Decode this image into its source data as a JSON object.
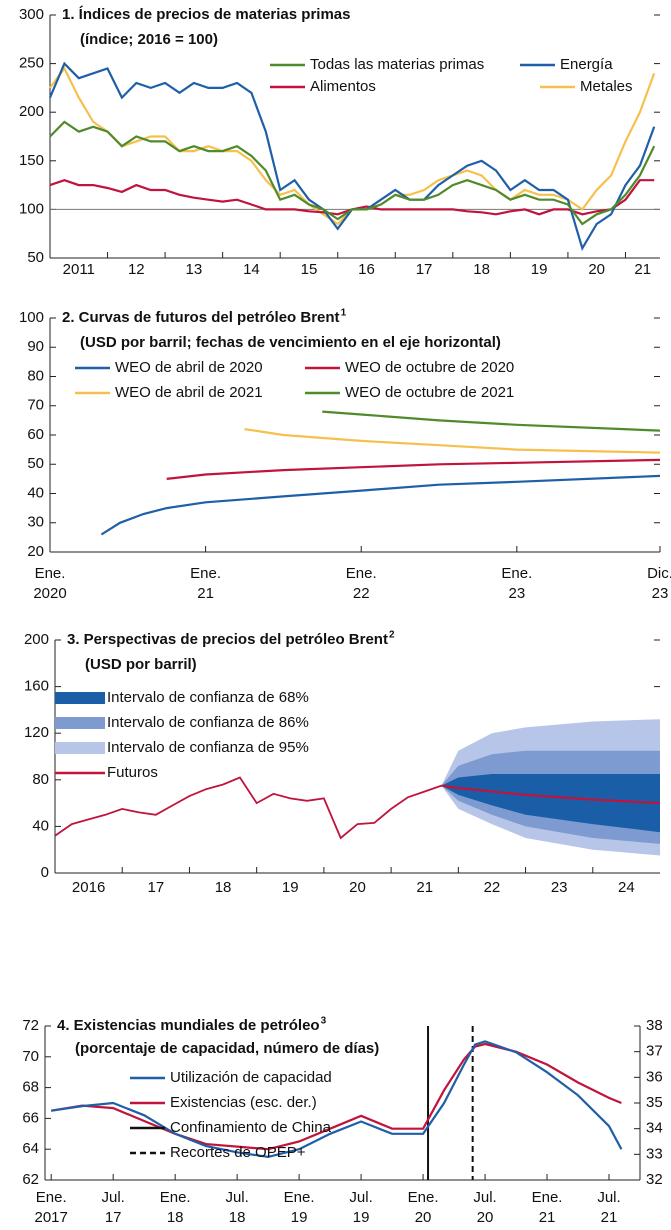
{
  "chart_data": [
    {
      "type": "line",
      "title": "1. Índices de precios de materias primas",
      "subtitle": "(índice; 2016 = 100)",
      "x": [
        2011,
        2011.25,
        2011.5,
        2011.75,
        2012,
        2012.25,
        2012.5,
        2012.75,
        2013,
        2013.25,
        2013.5,
        2013.75,
        2014,
        2014.25,
        2014.5,
        2014.75,
        2015,
        2015.25,
        2015.5,
        2015.75,
        2016,
        2016.25,
        2016.5,
        2016.75,
        2017,
        2017.25,
        2017.5,
        2017.75,
        2018,
        2018.25,
        2018.5,
        2018.75,
        2019,
        2019.25,
        2019.5,
        2019.75,
        2020,
        2020.25,
        2020.5,
        2020.75,
        2021,
        2021.25,
        2021.5
      ],
      "series": [
        {
          "name": "Todas las materias primas",
          "color": "#4f8a2b",
          "values": [
            175,
            190,
            180,
            185,
            180,
            165,
            175,
            170,
            170,
            160,
            165,
            160,
            160,
            165,
            155,
            140,
            110,
            115,
            105,
            100,
            90,
            100,
            100,
            105,
            115,
            110,
            110,
            115,
            125,
            130,
            125,
            120,
            110,
            115,
            110,
            110,
            105,
            85,
            95,
            100,
            115,
            135,
            165
          ]
        },
        {
          "name": "Energía",
          "color": "#1f5fa8",
          "values": [
            215,
            250,
            235,
            240,
            245,
            215,
            230,
            225,
            230,
            220,
            230,
            225,
            225,
            230,
            220,
            180,
            120,
            130,
            110,
            100,
            80,
            100,
            100,
            110,
            120,
            110,
            110,
            125,
            135,
            145,
            150,
            140,
            120,
            130,
            120,
            120,
            110,
            60,
            85,
            95,
            125,
            145,
            185
          ]
        },
        {
          "name": "Alimentos",
          "color": "#c0143c",
          "values": [
            125,
            130,
            125,
            125,
            122,
            118,
            125,
            120,
            120,
            115,
            112,
            110,
            108,
            110,
            105,
            100,
            100,
            100,
            98,
            97,
            95,
            100,
            103,
            100,
            100,
            100,
            100,
            100,
            100,
            98,
            97,
            95,
            98,
            100,
            95,
            100,
            100,
            95,
            98,
            100,
            110,
            130,
            130
          ]
        },
        {
          "name": "Metales",
          "color": "#f6c04e",
          "values": [
            225,
            245,
            215,
            190,
            180,
            165,
            170,
            175,
            175,
            160,
            160,
            165,
            160,
            160,
            150,
            130,
            115,
            120,
            105,
            95,
            85,
            100,
            100,
            105,
            115,
            115,
            120,
            130,
            135,
            140,
            135,
            120,
            110,
            120,
            115,
            115,
            110,
            100,
            120,
            135,
            170,
            200,
            240
          ]
        }
      ],
      "hline": 100,
      "xlim": [
        2011,
        2021.6
      ],
      "ylim": [
        50,
        300
      ],
      "yticks": [
        50,
        100,
        150,
        200,
        250,
        300
      ],
      "xticks": [
        2011,
        {
          "value": 2012,
          "label": "12"
        },
        {
          "value": 2013,
          "label": "13"
        },
        {
          "value": 2014,
          "label": "14"
        },
        {
          "value": 2015,
          "label": "15"
        },
        {
          "value": 2016,
          "label": "16"
        },
        {
          "value": 2017,
          "label": "17"
        },
        {
          "value": 2018,
          "label": "18"
        },
        {
          "value": 2019,
          "label": "19"
        },
        {
          "value": 2020,
          "label": "20"
        },
        {
          "value": 2021,
          "label": "21"
        }
      ],
      "x_labels_between": true
    },
    {
      "type": "line",
      "title": "2. Curvas de futuros del petróleo Brent",
      "title_note": "1",
      "subtitle": "(USD por barril; fechas de vencimiento en el eje horizontal)",
      "series": [
        {
          "name": "WEO de abril de 2020",
          "color": "#1f5fa8",
          "x": [
            2020.33,
            2020.45,
            2020.6,
            2020.75,
            2021,
            2021.5,
            2022,
            2022.5,
            2023,
            2023.92
          ],
          "values": [
            26,
            30,
            33,
            35,
            37,
            39,
            41,
            43,
            44,
            46
          ]
        },
        {
          "name": "WEO de octubre de 2020",
          "color": "#c0143c",
          "x": [
            2020.75,
            2021,
            2021.5,
            2022,
            2022.5,
            2023,
            2023.92
          ],
          "values": [
            45,
            46.5,
            48,
            49,
            50,
            50.5,
            51.5
          ]
        },
        {
          "name": "WEO de abril de 2021",
          "color": "#f6c04e",
          "x": [
            2021.25,
            2021.5,
            2022,
            2022.5,
            2023,
            2023.92
          ],
          "values": [
            62,
            60,
            58,
            56.5,
            55,
            54
          ]
        },
        {
          "name": "WEO de octubre de 2021",
          "color": "#4f8a2b",
          "x": [
            2021.75,
            2022,
            2022.5,
            2023,
            2023.92
          ],
          "values": [
            68,
            67,
            65,
            63.5,
            61.5
          ]
        }
      ],
      "xlim": [
        2020,
        2023.92
      ],
      "ylim": [
        20,
        100
      ],
      "yticks": [
        20,
        30,
        40,
        50,
        60,
        70,
        80,
        90,
        100
      ],
      "xticks": [
        {
          "value": 2020,
          "label": "Ene. 2020"
        },
        {
          "value": 2021,
          "label": "Ene. 21"
        },
        {
          "value": 2022,
          "label": "Ene. 22"
        },
        {
          "value": 2023,
          "label": "Ene. 23"
        },
        {
          "value": 2023.92,
          "label": "Dic. 23"
        }
      ]
    },
    {
      "type": "fan",
      "title": "3. Perspectivas de precios del petróleo Brent",
      "title_note": "2",
      "subtitle": "(USD por barril)",
      "history": {
        "color": "#c0143c",
        "x": [
          2016,
          2016.25,
          2016.5,
          2016.75,
          2017,
          2017.25,
          2017.5,
          2017.75,
          2018,
          2018.25,
          2018.5,
          2018.75,
          2019,
          2019.25,
          2019.5,
          2019.75,
          2020,
          2020.25,
          2020.5,
          2020.75,
          2021,
          2021.25,
          2021.5,
          2021.75
        ],
        "values": [
          32,
          42,
          46,
          50,
          55,
          52,
          50,
          58,
          66,
          72,
          76,
          82,
          60,
          68,
          64,
          62,
          64,
          30,
          42,
          43,
          55,
          65,
          70,
          75
        ]
      },
      "band_x": [
        2021.75,
        2022,
        2022.5,
        2023,
        2024,
        2025
      ],
      "bands": [
        {
          "name": "Intervalo de confianza de 68%",
          "color": "#1a5ea8",
          "low": [
            75,
            67,
            58,
            50,
            42,
            35
          ],
          "high": [
            75,
            82,
            85,
            85,
            85,
            85
          ]
        },
        {
          "name": "Intervalo de confianza de 86%",
          "color": "#7d9bd1",
          "low": [
            75,
            62,
            50,
            40,
            30,
            25
          ],
          "high": [
            75,
            92,
            102,
            105,
            105,
            105
          ]
        },
        {
          "name": "Intervalo de confianza de 95%",
          "color": "#b7c6e8",
          "low": [
            75,
            55,
            42,
            30,
            20,
            15
          ],
          "high": [
            75,
            105,
            120,
            125,
            130,
            132
          ]
        }
      ],
      "series": [
        {
          "name": "Futuros",
          "color": "#c0143c",
          "x": [
            2021.75,
            2022,
            2023,
            2024,
            2025
          ],
          "values": [
            75,
            73,
            67,
            63,
            60
          ]
        }
      ],
      "xlim": [
        2016,
        2025
      ],
      "ylim": [
        0,
        200
      ],
      "yticks": [
        0,
        40,
        80,
        120,
        160,
        200
      ],
      "xticks": [
        2016,
        {
          "value": 2017,
          "label": "17"
        },
        {
          "value": 2018,
          "label": "18"
        },
        {
          "value": 2019,
          "label": "19"
        },
        {
          "value": 2020,
          "label": "20"
        },
        {
          "value": 2021,
          "label": "21"
        },
        {
          "value": 2022,
          "label": "22"
        },
        {
          "value": 2023,
          "label": "23"
        },
        {
          "value": 2024,
          "label": "24"
        }
      ],
      "x_labels_between": true
    },
    {
      "type": "line",
      "title": "4. Existencias mundiales de petróleo",
      "title_note": "3",
      "subtitle": "(porcentaje de capacidad, número de días)",
      "x": [
        2017,
        2017.25,
        2017.5,
        2017.75,
        2018,
        2018.25,
        2018.5,
        2018.75,
        2019,
        2019.25,
        2019.5,
        2019.75,
        2020,
        2020.17,
        2020.33,
        2020.42,
        2020.5,
        2020.75,
        2021,
        2021.25,
        2021.5,
        2021.6
      ],
      "series": [
        {
          "name": "Utilización de capacidad",
          "color": "#1f5fa8",
          "values": [
            66.5,
            66.8,
            67,
            66.2,
            65,
            64.2,
            63.8,
            63.5,
            64,
            65,
            65.8,
            65,
            65,
            67,
            69.5,
            70.8,
            71,
            70.3,
            69,
            67.5,
            65.5,
            64
          ]
        },
        {
          "name": "Existencias (esc. der.)",
          "color": "#c0143c",
          "axis": "y2",
          "values": [
            34.7,
            34.9,
            34.8,
            34.3,
            33.8,
            33.4,
            33.3,
            33.2,
            33.5,
            34,
            34.5,
            34,
            34,
            35.5,
            36.7,
            37.2,
            37.3,
            37,
            36.5,
            35.8,
            35.2,
            35
          ]
        }
      ],
      "events": [
        {
          "name": "Confinamiento de China",
          "x": 2020.04,
          "style": "solid"
        },
        {
          "name": "Recortes de OPEP+",
          "x": 2020.4,
          "style": "dashed"
        }
      ],
      "xlim": [
        2016.95,
        2021.75
      ],
      "ylim": [
        62,
        72
      ],
      "yticks": [
        62,
        64,
        66,
        68,
        70,
        72
      ],
      "y2lim": [
        32,
        38
      ],
      "y2ticks": [
        32,
        33,
        34,
        35,
        36,
        37,
        38
      ],
      "xticks": [
        {
          "value": 2017,
          "label": "Ene. 2017"
        },
        {
          "value": 2017.5,
          "label": "Jul. 17"
        },
        {
          "value": 2018,
          "label": "Ene. 18"
        },
        {
          "value": 2018.5,
          "label": "Jul. 18"
        },
        {
          "value": 2019,
          "label": "Ene. 19"
        },
        {
          "value": 2019.5,
          "label": "Jul. 19"
        },
        {
          "value": 2020,
          "label": "Ene. 20"
        },
        {
          "value": 2020.5,
          "label": "Jul. 20"
        },
        {
          "value": 2021,
          "label": "Ene. 21"
        },
        {
          "value": 2021.5,
          "label": "Jul. 21"
        }
      ]
    }
  ]
}
